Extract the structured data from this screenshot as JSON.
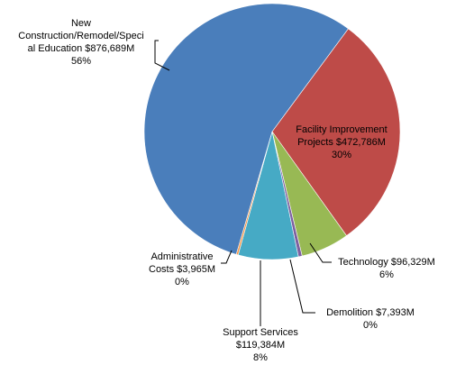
{
  "chart_data": {
    "type": "pie",
    "title": "",
    "slices": [
      {
        "label": "New Construction/Remodel/Special Education",
        "amount": "$876,689M",
        "value": 876.689,
        "percent": "56%",
        "color": "#4A7EBB"
      },
      {
        "label": "Facility Improvement Projects",
        "amount": "$472,786M",
        "value": 472.786,
        "percent": "30%",
        "color": "#BE4B48"
      },
      {
        "label": "Technology",
        "amount": "$96,329M",
        "value": 96.329,
        "percent": "6%",
        "color": "#98B954"
      },
      {
        "label": "Demolition",
        "amount": "$7,393M",
        "value": 7.393,
        "percent": "0%",
        "color": "#7D60A0"
      },
      {
        "label": "Support Services",
        "amount": "$119,384M",
        "value": 119.384,
        "percent": "8%",
        "color": "#46AAC5"
      },
      {
        "label": "Administrative Costs",
        "amount": "$3,965M",
        "value": 3.965,
        "percent": "0%",
        "color": "#F79646"
      }
    ],
    "legend": "none"
  },
  "labels": {
    "new_construction": {
      "line1": "New",
      "line2": "Construction/Remodel/Speci",
      "line3": "al Education  $876,689M",
      "line4": "56%"
    },
    "facility": {
      "line1": "Facility Improvement",
      "line2": "Projects  $472,786M",
      "line3": "30%"
    },
    "technology": {
      "line1": "Technology  $96,329M",
      "line2": "6%"
    },
    "demolition": {
      "line1": "Demolition   $7,393M",
      "line2": "0%"
    },
    "support": {
      "line1": "Support Services",
      "line2": "$119,384M",
      "line3": "8%"
    },
    "administrative": {
      "line1": "Administrative",
      "line2": "Costs  $3,965M",
      "line3": "0%"
    }
  }
}
